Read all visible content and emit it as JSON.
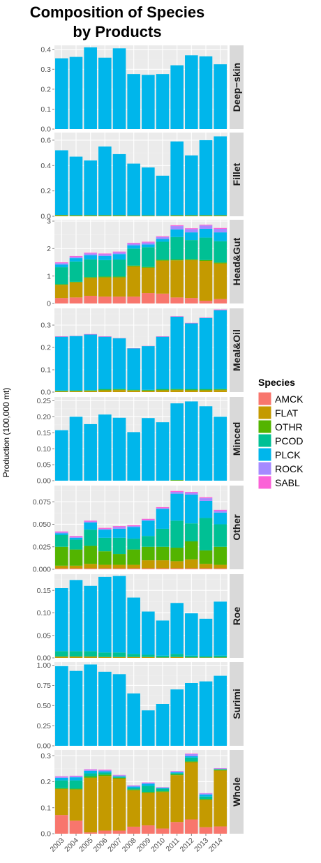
{
  "chart_data": {
    "type": "bar",
    "title_lines": [
      "Composition of Species",
      "by Products"
    ],
    "ylabel": "Production (100,000 mt)",
    "xlabel": "",
    "categories": [
      "2003",
      "2004",
      "2005",
      "2006",
      "2007",
      "2008",
      "2009",
      "2010",
      "2011",
      "2012",
      "2013",
      "2014"
    ],
    "species": [
      "AMCK",
      "FLAT",
      "OTHR",
      "PCOD",
      "PLCK",
      "ROCK",
      "SABL"
    ],
    "colors": {
      "AMCK": "#F8766D",
      "FLAT": "#C49A00",
      "OTHR": "#53B400",
      "PCOD": "#00C094",
      "PLCK": "#00B6EB",
      "ROCK": "#A58AFF",
      "SABL": "#FB61D7",
      "panel_bg": "#EBEBEB",
      "grid": "#FFFFFF",
      "strip_bg": "#D9D9D9"
    },
    "legend": {
      "title": "Species",
      "placement": "right",
      "entries": [
        "AMCK",
        "FLAT",
        "OTHR",
        "PCOD",
        "PLCK",
        "ROCK",
        "SABL"
      ]
    },
    "grid": true,
    "facets": [
      {
        "name": "Deep−skin",
        "ylim": [
          0,
          0.42
        ],
        "ticks": [
          0.0,
          0.1,
          0.2,
          0.3,
          0.4
        ],
        "tick_labels": [
          "0.0",
          "0.1",
          "0.2",
          "0.3",
          "0.4"
        ],
        "series": {
          "AMCK": [
            0,
            0,
            0,
            0,
            0,
            0,
            0,
            0,
            0,
            0,
            0,
            0
          ],
          "FLAT": [
            0,
            0,
            0,
            0,
            0,
            0,
            0,
            0,
            0,
            0,
            0,
            0
          ],
          "OTHR": [
            0,
            0,
            0,
            0,
            0,
            0,
            0,
            0,
            0,
            0,
            0,
            0
          ],
          "PCOD": [
            0,
            0,
            0,
            0,
            0,
            0,
            0,
            0,
            0,
            0,
            0,
            0
          ],
          "PLCK": [
            0.355,
            0.362,
            0.41,
            0.358,
            0.405,
            0.276,
            0.272,
            0.276,
            0.32,
            0.37,
            0.365,
            0.325
          ],
          "ROCK": [
            0,
            0,
            0,
            0,
            0,
            0,
            0,
            0,
            0,
            0,
            0,
            0
          ],
          "SABL": [
            0,
            0,
            0,
            0,
            0,
            0,
            0,
            0,
            0,
            0,
            0,
            0
          ]
        }
      },
      {
        "name": "Fillet",
        "ylim": [
          0,
          0.66
        ],
        "ticks": [
          0.0,
          0.2,
          0.4,
          0.6
        ],
        "tick_labels": [
          "0.0",
          "0.2",
          "0.4",
          "0.6"
        ],
        "series": {
          "AMCK": [
            0,
            0,
            0,
            0,
            0,
            0,
            0,
            0,
            0,
            0,
            0,
            0
          ],
          "FLAT": [
            0.005,
            0.004,
            0.004,
            0.004,
            0.004,
            0.003,
            0.003,
            0.002,
            0.004,
            0.004,
            0.004,
            0.004
          ],
          "OTHR": [
            0.005,
            0.004,
            0.004,
            0.004,
            0.004,
            0.003,
            0.003,
            0.002,
            0.004,
            0.004,
            0.004,
            0.004
          ],
          "PCOD": [
            0,
            0,
            0,
            0,
            0,
            0,
            0,
            0,
            0,
            0,
            0,
            0
          ],
          "PLCK": [
            0.51,
            0.462,
            0.432,
            0.542,
            0.482,
            0.409,
            0.379,
            0.316,
            0.582,
            0.472,
            0.592,
            0.622
          ],
          "ROCK": [
            0,
            0,
            0,
            0,
            0,
            0,
            0,
            0,
            0,
            0,
            0,
            0
          ],
          "SABL": [
            0,
            0,
            0,
            0,
            0,
            0,
            0,
            0,
            0,
            0,
            0,
            0
          ]
        }
      },
      {
        "name": "Head&Gut",
        "ylim": [
          0,
          3.05
        ],
        "ticks": [
          0,
          1,
          2,
          3
        ],
        "tick_labels": [
          "0",
          "1",
          "2",
          "3"
        ],
        "series": {
          "AMCK": [
            0.2,
            0.22,
            0.28,
            0.25,
            0.25,
            0.25,
            0.38,
            0.36,
            0.22,
            0.2,
            0.1,
            0.16
          ],
          "FLAT": [
            0.48,
            0.55,
            0.65,
            0.7,
            0.7,
            1.1,
            0.92,
            1.2,
            1.35,
            1.38,
            1.45,
            1.3
          ],
          "OTHR": [
            0.02,
            0.02,
            0.03,
            0.03,
            0.03,
            0.03,
            0.03,
            0.03,
            0.03,
            0.03,
            0.03,
            0.03
          ],
          "PCOD": [
            0.62,
            0.74,
            0.65,
            0.6,
            0.62,
            0.62,
            0.72,
            0.66,
            0.82,
            0.7,
            0.82,
            0.78
          ],
          "PLCK": [
            0.1,
            0.12,
            0.15,
            0.15,
            0.2,
            0.12,
            0.1,
            0.1,
            0.28,
            0.28,
            0.32,
            0.32
          ],
          "ROCK": [
            0.05,
            0.05,
            0.06,
            0.06,
            0.06,
            0.06,
            0.07,
            0.07,
            0.12,
            0.12,
            0.12,
            0.13
          ],
          "SABL": [
            0.03,
            0.03,
            0.03,
            0.03,
            0.03,
            0.03,
            0.03,
            0.03,
            0.03,
            0.03,
            0.03,
            0.03
          ]
        }
      },
      {
        "name": "Meal&Oil",
        "ylim": [
          0,
          0.375
        ],
        "ticks": [
          0.0,
          0.1,
          0.2,
          0.3
        ],
        "tick_labels": [
          "0.0",
          "0.1",
          "0.2",
          "0.3"
        ],
        "series": {
          "AMCK": [
            0,
            0,
            0,
            0,
            0,
            0,
            0,
            0,
            0,
            0,
            0,
            0
          ],
          "FLAT": [
            0.003,
            0.004,
            0.005,
            0.008,
            0.009,
            0.007,
            0.006,
            0.008,
            0.009,
            0.008,
            0.008,
            0.009
          ],
          "OTHR": [
            0.002,
            0.002,
            0.002,
            0.003,
            0.003,
            0.002,
            0.002,
            0.003,
            0.003,
            0.003,
            0.003,
            0.003
          ],
          "PCOD": [
            0.002,
            0.002,
            0.002,
            0.003,
            0.003,
            0.002,
            0.002,
            0.003,
            0.003,
            0.003,
            0.003,
            0.003
          ],
          "PLCK": [
            0.241,
            0.243,
            0.249,
            0.234,
            0.226,
            0.185,
            0.196,
            0.234,
            0.323,
            0.294,
            0.318,
            0.352
          ],
          "ROCK": [
            0,
            0,
            0,
            0,
            0,
            0,
            0,
            0,
            0,
            0,
            0,
            0
          ],
          "SABL": [
            0.002,
            0.001,
            0.002,
            0.002,
            0.001,
            0.001,
            0.001,
            0.002,
            0.002,
            0.002,
            0.002,
            0.003
          ]
        }
      },
      {
        "name": "Minced",
        "ylim": [
          0,
          0.262
        ],
        "ticks": [
          0.0,
          0.05,
          0.1,
          0.15,
          0.2,
          0.25
        ],
        "tick_labels": [
          "0.00",
          "0.05",
          "0.10",
          "0.15",
          "0.20",
          "0.25"
        ],
        "series": {
          "AMCK": [
            0,
            0,
            0,
            0,
            0,
            0,
            0,
            0,
            0,
            0,
            0,
            0
          ],
          "FLAT": [
            0,
            0,
            0,
            0,
            0,
            0,
            0,
            0,
            0,
            0,
            0,
            0
          ],
          "OTHR": [
            0,
            0,
            0,
            0,
            0,
            0,
            0,
            0,
            0.002,
            0,
            0,
            0
          ],
          "PCOD": [
            0,
            0,
            0,
            0,
            0,
            0,
            0,
            0,
            0,
            0,
            0,
            0
          ],
          "PLCK": [
            0.158,
            0.2,
            0.177,
            0.207,
            0.197,
            0.152,
            0.196,
            0.183,
            0.24,
            0.248,
            0.233,
            0.2
          ],
          "ROCK": [
            0,
            0,
            0,
            0,
            0,
            0,
            0,
            0,
            0,
            0,
            0,
            0
          ],
          "SABL": [
            0,
            0,
            0,
            0,
            0,
            0,
            0,
            0,
            0,
            0,
            0,
            0
          ]
        }
      },
      {
        "name": "Other",
        "ylim": [
          0,
          0.093
        ],
        "ticks": [
          0.0,
          0.025,
          0.05,
          0.075
        ],
        "tick_labels": [
          "0.000",
          "0.025",
          "0.050",
          "0.075"
        ],
        "series": {
          "AMCK": [
            0.001,
            0.001,
            0.001,
            0.001,
            0.001,
            0.001,
            0.001,
            0.001,
            0.001,
            0.001,
            0.001,
            0.001
          ],
          "FLAT": [
            0.003,
            0.003,
            0.005,
            0.004,
            0.004,
            0.004,
            0.009,
            0.009,
            0.008,
            0.01,
            0.005,
            0.004
          ],
          "OTHR": [
            0.021,
            0.018,
            0.02,
            0.015,
            0.012,
            0.017,
            0.015,
            0.015,
            0.015,
            0.02,
            0.015,
            0.02
          ],
          "PCOD": [
            0.013,
            0.011,
            0.018,
            0.015,
            0.018,
            0.012,
            0.012,
            0.02,
            0.03,
            0.02,
            0.036,
            0.025
          ],
          "PLCK": [
            0.002,
            0.002,
            0.008,
            0.009,
            0.01,
            0.013,
            0.017,
            0.022,
            0.03,
            0.032,
            0.019,
            0.013
          ],
          "ROCK": [
            0.001,
            0.001,
            0.001,
            0.001,
            0.002,
            0.001,
            0.001,
            0.001,
            0.002,
            0.002,
            0.003,
            0.002
          ],
          "SABL": [
            0.001,
            0.001,
            0.001,
            0.001,
            0.001,
            0.001,
            0.001,
            0.001,
            0.001,
            0.001,
            0.001,
            0.001
          ]
        }
      },
      {
        "name": "Roe",
        "ylim": [
          0,
          0.186
        ],
        "ticks": [
          0.0,
          0.05,
          0.1,
          0.15
        ],
        "tick_labels": [
          "0.00",
          "0.05",
          "0.10",
          "0.15"
        ],
        "series": {
          "AMCK": [
            0,
            0,
            0,
            0,
            0,
            0,
            0,
            0,
            0,
            0,
            0,
            0
          ],
          "FLAT": [
            0.003,
            0.003,
            0.003,
            0.002,
            0.002,
            0.002,
            0.002,
            0.001,
            0.002,
            0.001,
            0.001,
            0.001
          ],
          "OTHR": [
            0,
            0,
            0,
            0,
            0,
            0,
            0,
            0,
            0,
            0,
            0,
            0
          ],
          "PCOD": [
            0.012,
            0.012,
            0.012,
            0.01,
            0.01,
            0.007,
            0.005,
            0.004,
            0.007,
            0.004,
            0.003,
            0.004
          ],
          "PLCK": [
            0.14,
            0.158,
            0.145,
            0.168,
            0.17,
            0.125,
            0.096,
            0.078,
            0.113,
            0.094,
            0.083,
            0.12
          ],
          "ROCK": [
            0,
            0,
            0,
            0,
            0,
            0,
            0,
            0,
            0,
            0,
            0,
            0
          ],
          "SABL": [
            0,
            0,
            0,
            0,
            0,
            0,
            0,
            0,
            0,
            0,
            0,
            0
          ]
        }
      },
      {
        "name": "Surimi",
        "ylim": [
          0,
          1.04
        ],
        "ticks": [
          0.0,
          0.25,
          0.5,
          0.75,
          1.0
        ],
        "tick_labels": [
          "0.00",
          "0.25",
          "0.50",
          "0.75",
          "1.00"
        ],
        "series": {
          "AMCK": [
            0,
            0,
            0,
            0,
            0,
            0,
            0,
            0,
            0,
            0,
            0,
            0
          ],
          "FLAT": [
            0,
            0,
            0,
            0,
            0,
            0,
            0,
            0,
            0,
            0,
            0,
            0
          ],
          "OTHR": [
            0,
            0,
            0,
            0,
            0,
            0,
            0,
            0,
            0,
            0,
            0,
            0
          ],
          "PCOD": [
            0,
            0,
            0,
            0,
            0,
            0,
            0,
            0,
            0,
            0,
            0,
            0
          ],
          "PLCK": [
            0.99,
            0.93,
            1.01,
            0.92,
            0.89,
            0.65,
            0.44,
            0.52,
            0.7,
            0.78,
            0.8,
            0.87
          ],
          "ROCK": [
            0,
            0,
            0,
            0,
            0,
            0,
            0,
            0,
            0,
            0,
            0,
            0
          ],
          "SABL": [
            0,
            0,
            0,
            0,
            0,
            0,
            0,
            0,
            0,
            0,
            0,
            0
          ]
        }
      },
      {
        "name": "Whole",
        "ylim": [
          0,
          0.322
        ],
        "ticks": [
          0.0,
          0.1,
          0.2,
          0.3
        ],
        "tick_labels": [
          "0.0",
          "0.1",
          "0.2",
          "0.3"
        ],
        "series": {
          "AMCK": [
            0.072,
            0.05,
            0.005,
            0.012,
            0.012,
            0.027,
            0.032,
            0.02,
            0.045,
            0.055,
            0.025,
            0.028
          ],
          "FLAT": [
            0.1,
            0.12,
            0.21,
            0.21,
            0.2,
            0.14,
            0.125,
            0.14,
            0.18,
            0.22,
            0.105,
            0.215
          ],
          "OTHR": [
            0.003,
            0.003,
            0.005,
            0.005,
            0.003,
            0.003,
            0.003,
            0.003,
            0.003,
            0.003,
            0.003,
            0.003
          ],
          "PCOD": [
            0.03,
            0.032,
            0.012,
            0.008,
            0.004,
            0.006,
            0.024,
            0.01,
            0.005,
            0.015,
            0.01,
            0.002
          ],
          "PLCK": [
            0.01,
            0.012,
            0.01,
            0.005,
            0.002,
            0.005,
            0.008,
            0.003,
            0.003,
            0.005,
            0.008,
            0.001
          ],
          "ROCK": [
            0.004,
            0.004,
            0.004,
            0.004,
            0.004,
            0.004,
            0.004,
            0.002,
            0.004,
            0.008,
            0.004,
            0.002
          ],
          "SABL": [
            0.002,
            0.002,
            0.002,
            0.002,
            0.001,
            0.001,
            0.001,
            0.001,
            0.001,
            0.002,
            0.001,
            0.001
          ]
        }
      }
    ]
  }
}
